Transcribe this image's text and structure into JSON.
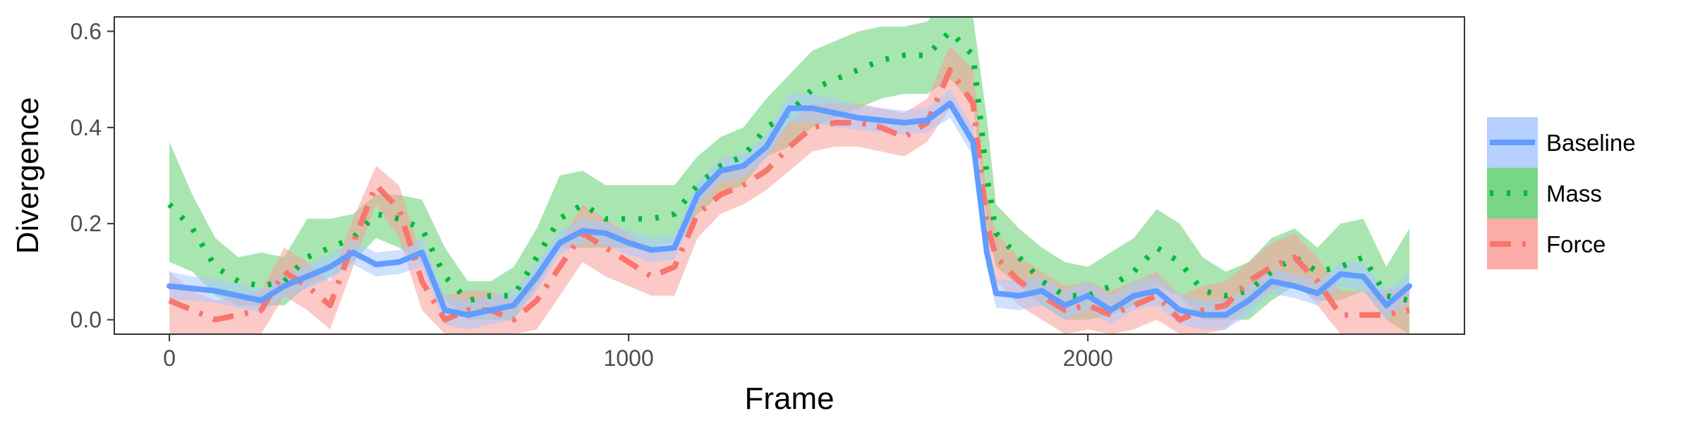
{
  "chart_data": {
    "type": "line",
    "title": "",
    "xlabel": "Frame",
    "ylabel": "Divergence",
    "xlim": [
      -120,
      2820
    ],
    "ylim": [
      -0.03,
      0.63
    ],
    "xticks": [
      0,
      1000,
      2000
    ],
    "xtick_labels": [
      "0",
      "1000",
      "2000"
    ],
    "yticks": [
      0.0,
      0.2,
      0.4,
      0.6
    ],
    "ytick_labels": [
      "0.0",
      "0.2",
      "0.4",
      "0.6"
    ],
    "grid": false,
    "legend_position": "right",
    "series": [
      {
        "name": "Mass",
        "color": "#00ba38",
        "band_color": "#62cf71",
        "linestyle": "dotted",
        "x": [
          0,
          50,
          100,
          150,
          200,
          250,
          300,
          350,
          400,
          450,
          500,
          550,
          600,
          650,
          700,
          750,
          800,
          850,
          900,
          950,
          1000,
          1050,
          1100,
          1150,
          1200,
          1250,
          1300,
          1350,
          1400,
          1450,
          1500,
          1550,
          1600,
          1650,
          1700,
          1750,
          1780,
          1800,
          1850,
          1900,
          1950,
          2000,
          2050,
          2100,
          2150,
          2200,
          2250,
          2300,
          2350,
          2400,
          2450,
          2500,
          2550,
          2600,
          2650,
          2700
        ],
        "y": [
          0.24,
          0.19,
          0.11,
          0.08,
          0.07,
          0.08,
          0.13,
          0.15,
          0.17,
          0.22,
          0.21,
          0.19,
          0.09,
          0.04,
          0.05,
          0.05,
          0.13,
          0.21,
          0.24,
          0.21,
          0.21,
          0.21,
          0.22,
          0.28,
          0.32,
          0.34,
          0.4,
          0.43,
          0.48,
          0.5,
          0.52,
          0.54,
          0.55,
          0.55,
          0.6,
          0.55,
          0.3,
          0.18,
          0.13,
          0.08,
          0.05,
          0.05,
          0.07,
          0.1,
          0.15,
          0.12,
          0.06,
          0.05,
          0.06,
          0.1,
          0.13,
          0.1,
          0.11,
          0.13,
          0.05,
          0.04
        ],
        "lo": [
          0.12,
          0.1,
          0.05,
          0.03,
          0.03,
          0.03,
          0.07,
          0.09,
          0.12,
          0.17,
          0.15,
          0.12,
          0.04,
          0.0,
          0.0,
          0.0,
          0.07,
          0.15,
          0.15,
          0.15,
          0.15,
          0.15,
          0.16,
          0.22,
          0.26,
          0.28,
          0.34,
          0.36,
          0.4,
          0.42,
          0.44,
          0.46,
          0.47,
          0.47,
          0.5,
          0.45,
          0.2,
          0.11,
          0.07,
          0.03,
          0.0,
          0.0,
          0.01,
          0.03,
          0.07,
          0.05,
          0.0,
          0.0,
          0.0,
          0.04,
          0.07,
          0.04,
          0.04,
          0.06,
          0.0,
          -0.03
        ],
        "hi": [
          0.37,
          0.26,
          0.17,
          0.13,
          0.14,
          0.13,
          0.21,
          0.21,
          0.22,
          0.26,
          0.26,
          0.25,
          0.15,
          0.08,
          0.08,
          0.11,
          0.19,
          0.3,
          0.31,
          0.28,
          0.28,
          0.28,
          0.28,
          0.34,
          0.38,
          0.4,
          0.46,
          0.51,
          0.56,
          0.58,
          0.6,
          0.61,
          0.61,
          0.62,
          0.68,
          0.63,
          0.42,
          0.24,
          0.19,
          0.15,
          0.12,
          0.11,
          0.14,
          0.17,
          0.23,
          0.2,
          0.13,
          0.1,
          0.12,
          0.17,
          0.19,
          0.15,
          0.2,
          0.21,
          0.11,
          0.19
        ]
      },
      {
        "name": "Force",
        "color": "#f8766d",
        "band_color": "#fa9e98",
        "linestyle": "dashdot",
        "x": [
          0,
          50,
          100,
          150,
          200,
          250,
          300,
          350,
          400,
          450,
          500,
          550,
          600,
          650,
          700,
          750,
          800,
          850,
          900,
          950,
          1000,
          1050,
          1100,
          1150,
          1200,
          1250,
          1300,
          1350,
          1400,
          1450,
          1500,
          1550,
          1600,
          1650,
          1700,
          1750,
          1780,
          1800,
          1850,
          1900,
          1950,
          2000,
          2050,
          2100,
          2150,
          2200,
          2250,
          2300,
          2350,
          2400,
          2450,
          2500,
          2550,
          2600,
          2650,
          2700
        ],
        "y": [
          0.04,
          0.02,
          0.0,
          0.01,
          0.02,
          0.1,
          0.07,
          0.03,
          0.16,
          0.28,
          0.23,
          0.08,
          0.0,
          0.02,
          0.02,
          0.0,
          0.04,
          0.11,
          0.18,
          0.15,
          0.12,
          0.09,
          0.11,
          0.22,
          0.26,
          0.28,
          0.31,
          0.36,
          0.4,
          0.41,
          0.41,
          0.4,
          0.38,
          0.41,
          0.52,
          0.45,
          0.2,
          0.13,
          0.08,
          0.05,
          0.02,
          0.03,
          0.01,
          0.03,
          0.05,
          0.0,
          0.02,
          0.03,
          0.08,
          0.11,
          0.13,
          0.08,
          0.01,
          0.01,
          0.01,
          0.02
        ],
        "lo": [
          -0.03,
          -0.03,
          -0.03,
          -0.03,
          -0.03,
          0.05,
          0.02,
          -0.02,
          0.11,
          0.24,
          0.17,
          0.02,
          -0.03,
          -0.03,
          -0.03,
          -0.03,
          -0.02,
          0.05,
          0.12,
          0.09,
          0.07,
          0.05,
          0.05,
          0.17,
          0.22,
          0.24,
          0.27,
          0.31,
          0.35,
          0.36,
          0.36,
          0.35,
          0.34,
          0.37,
          0.44,
          0.38,
          0.14,
          0.08,
          0.03,
          0.0,
          -0.03,
          -0.02,
          -0.03,
          -0.02,
          0.0,
          -0.03,
          -0.03,
          -0.02,
          0.03,
          0.06,
          0.08,
          0.03,
          -0.03,
          -0.03,
          -0.03,
          -0.03
        ],
        "hi": [
          0.1,
          0.06,
          0.04,
          0.05,
          0.06,
          0.15,
          0.12,
          0.08,
          0.21,
          0.32,
          0.28,
          0.13,
          0.05,
          0.06,
          0.06,
          0.04,
          0.09,
          0.16,
          0.24,
          0.21,
          0.18,
          0.14,
          0.16,
          0.27,
          0.31,
          0.32,
          0.36,
          0.41,
          0.45,
          0.45,
          0.45,
          0.44,
          0.43,
          0.46,
          0.57,
          0.52,
          0.26,
          0.18,
          0.13,
          0.1,
          0.07,
          0.08,
          0.06,
          0.08,
          0.1,
          0.05,
          0.07,
          0.08,
          0.12,
          0.16,
          0.18,
          0.13,
          0.06,
          0.06,
          0.06,
          0.07
        ]
      },
      {
        "name": "Baseline",
        "color": "#619cff",
        "band_color": "#a9c8ff",
        "linestyle": "solid",
        "x": [
          0,
          50,
          100,
          150,
          200,
          250,
          300,
          350,
          400,
          450,
          500,
          550,
          600,
          650,
          700,
          750,
          800,
          850,
          900,
          950,
          1000,
          1050,
          1100,
          1150,
          1200,
          1250,
          1300,
          1350,
          1400,
          1450,
          1500,
          1550,
          1600,
          1650,
          1700,
          1750,
          1780,
          1800,
          1850,
          1900,
          1950,
          2000,
          2050,
          2100,
          2150,
          2200,
          2250,
          2300,
          2350,
          2400,
          2450,
          2500,
          2550,
          2600,
          2650,
          2700
        ],
        "y": [
          0.07,
          0.065,
          0.06,
          0.05,
          0.04,
          0.07,
          0.09,
          0.11,
          0.14,
          0.115,
          0.12,
          0.14,
          0.02,
          0.01,
          0.02,
          0.03,
          0.09,
          0.16,
          0.185,
          0.18,
          0.16,
          0.145,
          0.15,
          0.26,
          0.31,
          0.32,
          0.36,
          0.44,
          0.44,
          0.43,
          0.42,
          0.415,
          0.41,
          0.415,
          0.45,
          0.37,
          0.14,
          0.055,
          0.05,
          0.06,
          0.03,
          0.05,
          0.02,
          0.05,
          0.06,
          0.02,
          0.01,
          0.01,
          0.04,
          0.08,
          0.07,
          0.055,
          0.095,
          0.09,
          0.03,
          0.07
        ],
        "lo": [
          0.04,
          0.04,
          0.035,
          0.025,
          0.015,
          0.045,
          0.065,
          0.085,
          0.115,
          0.09,
          0.095,
          0.11,
          -0.01,
          -0.02,
          -0.01,
          0.0,
          0.06,
          0.135,
          0.16,
          0.155,
          0.135,
          0.12,
          0.125,
          0.235,
          0.285,
          0.295,
          0.335,
          0.41,
          0.41,
          0.4,
          0.395,
          0.39,
          0.385,
          0.39,
          0.42,
          0.34,
          0.11,
          0.025,
          0.02,
          0.03,
          0.0,
          0.02,
          -0.01,
          0.02,
          0.03,
          -0.01,
          -0.02,
          -0.02,
          0.01,
          0.055,
          0.045,
          0.03,
          0.07,
          0.06,
          0.0,
          0.04
        ],
        "hi": [
          0.1,
          0.09,
          0.085,
          0.075,
          0.065,
          0.095,
          0.115,
          0.135,
          0.165,
          0.14,
          0.145,
          0.17,
          0.05,
          0.04,
          0.05,
          0.06,
          0.12,
          0.185,
          0.21,
          0.205,
          0.185,
          0.17,
          0.175,
          0.285,
          0.335,
          0.345,
          0.385,
          0.47,
          0.47,
          0.46,
          0.445,
          0.44,
          0.435,
          0.44,
          0.48,
          0.4,
          0.17,
          0.085,
          0.08,
          0.09,
          0.06,
          0.08,
          0.05,
          0.08,
          0.09,
          0.05,
          0.04,
          0.04,
          0.07,
          0.105,
          0.095,
          0.08,
          0.12,
          0.12,
          0.06,
          0.1
        ]
      }
    ],
    "legend": [
      {
        "label": "Baseline",
        "series": "Baseline"
      },
      {
        "label": "Mass",
        "series": "Mass"
      },
      {
        "label": "Force",
        "series": "Force"
      }
    ]
  }
}
